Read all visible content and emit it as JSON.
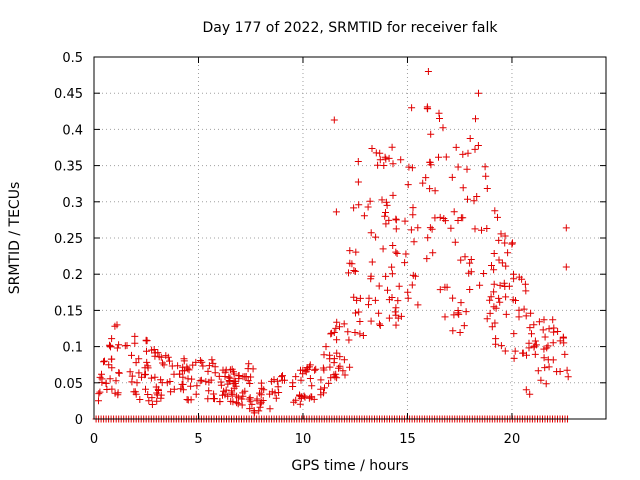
{
  "colors": {
    "series": "#e00000",
    "grid": "#a0a0a0",
    "axis": "#000000"
  },
  "chart_data": {
    "type": "scatter",
    "title": "Day 177 of 2022, SRMTID for receiver falk",
    "xlabel": "GPS time / hours",
    "ylabel": "SRMTID / TECUs",
    "xlim": [
      0,
      24.5
    ],
    "ylim": [
      0,
      0.5
    ],
    "xticks": [
      0,
      5,
      10,
      15,
      20
    ],
    "yticks": [
      0,
      0.05,
      0.1,
      0.15,
      0.2,
      0.25,
      0.3,
      0.35,
      0.4,
      0.45,
      0.5
    ],
    "xtick_labels": [
      "0",
      "5",
      "10",
      "15",
      "20"
    ],
    "ytick_labels": [
      "0",
      "0.05",
      "0.1",
      "0.15",
      "0.2",
      "0.25",
      "0.3",
      "0.35",
      "0.4",
      "0.45",
      "0.5"
    ],
    "grid": true,
    "marker": "+",
    "series": [
      {
        "name": "SRMTID",
        "baseline_value": 0,
        "baseline_x_range": [
          0.1,
          22.7
        ],
        "baseline_step": 0.12,
        "envelope": [
          {
            "x": 0.2,
            "ylo": 0.02,
            "yhi": 0.07
          },
          {
            "x": 1.0,
            "ylo": 0.03,
            "yhi": 0.13
          },
          {
            "x": 2.5,
            "ylo": 0.02,
            "yhi": 0.11
          },
          {
            "x": 4.0,
            "ylo": 0.02,
            "yhi": 0.08
          },
          {
            "x": 5.0,
            "ylo": 0.02,
            "yhi": 0.1
          },
          {
            "x": 6.5,
            "ylo": 0.02,
            "yhi": 0.07
          },
          {
            "x": 7.5,
            "ylo": 0.01,
            "yhi": 0.08
          },
          {
            "x": 8.0,
            "ylo": 0.005,
            "yhi": 0.05
          },
          {
            "x": 9.0,
            "ylo": 0.02,
            "yhi": 0.06
          },
          {
            "x": 10.0,
            "ylo": 0.02,
            "yhi": 0.07
          },
          {
            "x": 11.0,
            "ylo": 0.03,
            "yhi": 0.09
          },
          {
            "x": 11.5,
            "ylo": 0.05,
            "yhi": 0.14
          },
          {
            "x": 12.0,
            "ylo": 0.05,
            "yhi": 0.22
          },
          {
            "x": 12.8,
            "ylo": 0.08,
            "yhi": 0.4
          },
          {
            "x": 13.5,
            "ylo": 0.12,
            "yhi": 0.4
          },
          {
            "x": 14.5,
            "ylo": 0.12,
            "yhi": 0.37
          },
          {
            "x": 15.5,
            "ylo": 0.14,
            "yhi": 0.43
          },
          {
            "x": 16.2,
            "ylo": 0.2,
            "yhi": 0.46
          },
          {
            "x": 17.0,
            "ylo": 0.12,
            "yhi": 0.41
          },
          {
            "x": 17.5,
            "ylo": 0.08,
            "yhi": 0.37
          },
          {
            "x": 18.3,
            "ylo": 0.12,
            "yhi": 0.44
          },
          {
            "x": 19.0,
            "ylo": 0.1,
            "yhi": 0.3
          },
          {
            "x": 19.8,
            "ylo": 0.08,
            "yhi": 0.27
          },
          {
            "x": 20.5,
            "ylo": 0.05,
            "yhi": 0.21
          },
          {
            "x": 21.0,
            "ylo": 0.02,
            "yhi": 0.14
          },
          {
            "x": 22.0,
            "ylo": 0.06,
            "yhi": 0.14
          },
          {
            "x": 22.7,
            "ylo": 0.04,
            "yhi": 0.1
          }
        ],
        "n_scatter": 560,
        "outliers": [
          {
            "x": 11.5,
            "y": 0.413
          },
          {
            "x": 11.6,
            "y": 0.286
          },
          {
            "x": 16.0,
            "y": 0.48
          },
          {
            "x": 15.2,
            "y": 0.43
          },
          {
            "x": 18.4,
            "y": 0.45
          },
          {
            "x": 22.6,
            "y": 0.264
          },
          {
            "x": 22.6,
            "y": 0.21
          },
          {
            "x": 11.1,
            "y": 0.1
          },
          {
            "x": 1.1,
            "y": 0.13
          },
          {
            "x": 2.5,
            "y": 0.108
          }
        ]
      }
    ]
  }
}
